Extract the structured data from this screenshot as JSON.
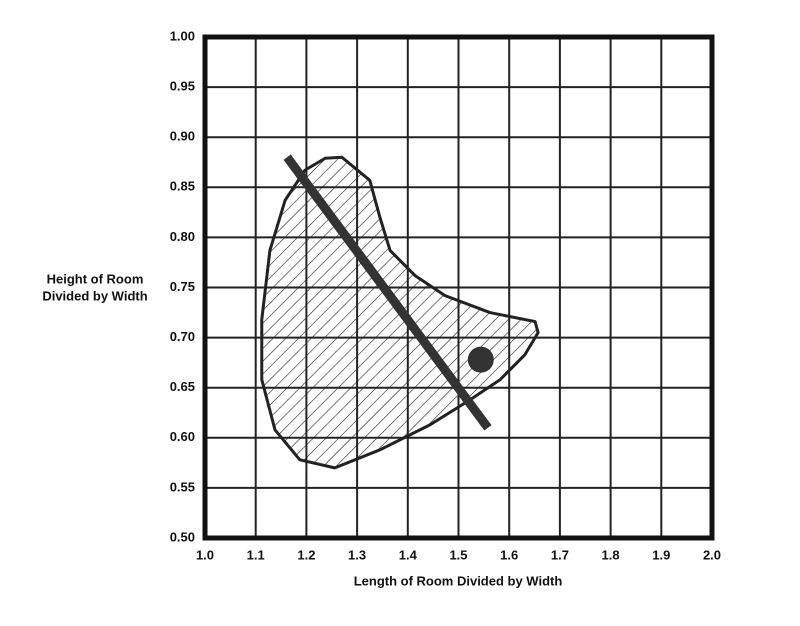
{
  "chart_data": {
    "type": "region",
    "xlabel": "Length of Room Divided by Width",
    "ylabel": [
      "Height of Room",
      "Divided by Width"
    ],
    "xlim": [
      1.0,
      2.0
    ],
    "ylim": [
      0.5,
      1.0
    ],
    "xticks": [
      {
        "value": 1.0,
        "label": "1.0"
      },
      1.1,
      1.2,
      1.3,
      1.4,
      1.5,
      1.6,
      1.7,
      1.8,
      1.9,
      {
        "value": 2.0,
        "label": "2.0"
      }
    ],
    "yticks": [
      {
        "value": 0.5,
        "label": "0.50"
      },
      0.55,
      {
        "value": 0.6,
        "label": "0.60"
      },
      0.65,
      {
        "value": 0.7,
        "label": "0.70"
      },
      0.75,
      {
        "value": 0.8,
        "label": "0.80"
      },
      0.85,
      {
        "value": 0.9,
        "label": "0.90"
      },
      0.95,
      {
        "value": 1.0,
        "label": "1.00"
      }
    ],
    "grid": true,
    "region": {
      "x": [
        1.27,
        1.325,
        1.345,
        1.365,
        1.414,
        1.473,
        1.562,
        1.651,
        1.657,
        1.631,
        1.582,
        1.523,
        1.444,
        1.345,
        1.256,
        1.187,
        1.138,
        1.112,
        1.112,
        1.128,
        1.158,
        1.197,
        1.237
      ],
      "y": [
        0.88,
        0.857,
        0.82,
        0.787,
        0.762,
        0.742,
        0.725,
        0.716,
        0.705,
        0.683,
        0.658,
        0.638,
        0.613,
        0.588,
        0.57,
        0.578,
        0.608,
        0.658,
        0.718,
        0.787,
        0.837,
        0.867,
        0.879
      ]
    },
    "line": {
      "x": [
        1.162,
        1.558
      ],
      "y": [
        0.88,
        0.61
      ],
      "color": "#333333"
    },
    "point": {
      "x": 1.544,
      "y": 0.678,
      "color": "#333333"
    }
  }
}
